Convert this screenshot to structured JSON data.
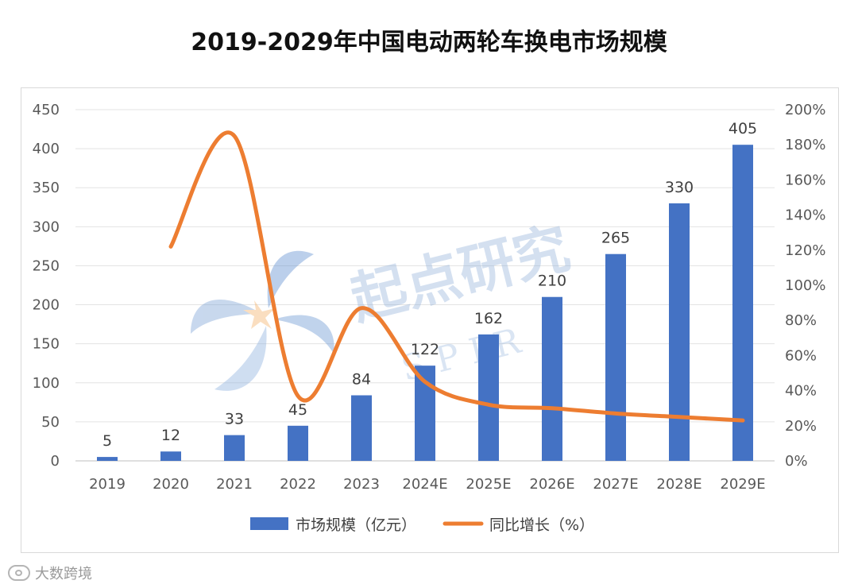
{
  "chart_data": {
    "type": "bar",
    "title": "2019-2029年中国电动两轮车换电市场规模",
    "categories": [
      "2019",
      "2020",
      "2021",
      "2022",
      "2023",
      "2024E",
      "2025E",
      "2026E",
      "2027E",
      "2028E",
      "2029E"
    ],
    "series": [
      {
        "name": "市场规模（亿元）",
        "kind": "bar",
        "axis": "left",
        "color": "#4472c4",
        "values": [
          5,
          12,
          33,
          45,
          84,
          122,
          162,
          210,
          265,
          330,
          405
        ],
        "data_labels": [
          "5",
          "12",
          "33",
          "45",
          "84",
          "122",
          "162",
          "210",
          "265",
          "330",
          "405"
        ]
      },
      {
        "name": "同比增长（%）",
        "kind": "line",
        "smooth": true,
        "axis": "right",
        "color": "#ed7d31",
        "values": [
          null,
          122,
          185,
          37,
          87,
          45,
          32,
          30,
          27,
          25,
          23
        ]
      }
    ],
    "y_left": {
      "min": 0,
      "max": 450,
      "ticks": [
        "0",
        "50",
        "100",
        "150",
        "200",
        "250",
        "300",
        "350",
        "400",
        "450"
      ]
    },
    "y_right": {
      "min": 0,
      "max": 200,
      "ticks": [
        "0%",
        "20%",
        "40%",
        "60%",
        "80%",
        "100%",
        "120%",
        "140%",
        "160%",
        "180%",
        "200%"
      ]
    },
    "grid": true,
    "legend_position": "bottom"
  },
  "watermark": {
    "text": "起点研究",
    "sub": "S P I R"
  },
  "footer": {
    "text": "大数跨境"
  }
}
